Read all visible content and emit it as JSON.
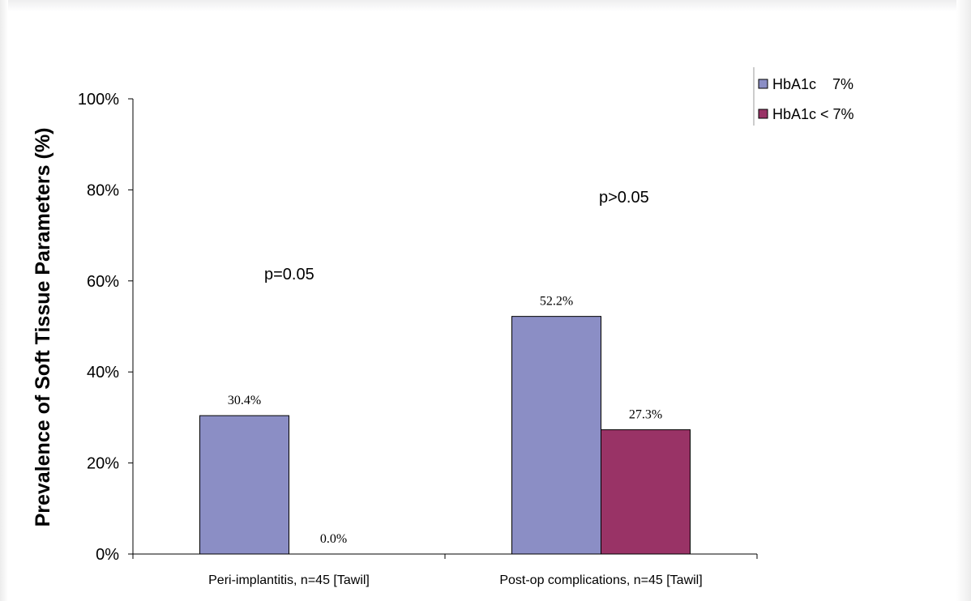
{
  "chart_data": {
    "type": "bar",
    "title": "",
    "xlabel": "",
    "ylabel": "Prevalence of Soft Tissue Parameters (%)",
    "ylim": [
      0,
      100
    ],
    "yticks": [
      "0%",
      "20%",
      "40%",
      "60%",
      "80%",
      "100%"
    ],
    "grid": false,
    "legend_position": "top-right",
    "categories": [
      "Peri-implantitis, n=45 [Tawil]",
      "Post-op complications, n=45 [Tawil]"
    ],
    "series": [
      {
        "name": "HbA1c    7%",
        "values": [
          30.4,
          52.2
        ],
        "labels": [
          "30.4%",
          "52.2%"
        ],
        "color": "#8b8ec5"
      },
      {
        "name": "HbA1c < 7%",
        "values": [
          0.0,
          27.3
        ],
        "labels": [
          "0.0%",
          "27.3%"
        ],
        "color": "#993366"
      }
    ],
    "annotations": [
      "p=0.05",
      "p>0.05"
    ]
  }
}
